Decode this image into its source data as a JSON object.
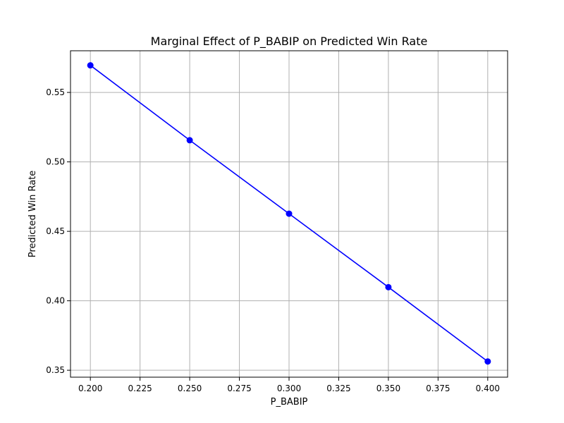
{
  "chart_data": {
    "type": "line",
    "title": "Marginal Effect of P_BABIP on Predicted Win Rate",
    "xlabel": "P_BABIP",
    "ylabel": "Predicted Win Rate",
    "xlim": [
      0.19,
      0.41
    ],
    "ylim": [
      0.345,
      0.58
    ],
    "x_ticks": [
      0.2,
      0.225,
      0.25,
      0.275,
      0.3,
      0.325,
      0.35,
      0.375,
      0.4
    ],
    "x_tick_labels": [
      "0.200",
      "0.225",
      "0.250",
      "0.275",
      "0.300",
      "0.325",
      "0.350",
      "0.375",
      "0.400"
    ],
    "y_ticks": [
      0.35,
      0.4,
      0.45,
      0.5,
      0.55
    ],
    "y_tick_labels": [
      "0.35",
      "0.40",
      "0.45",
      "0.50",
      "0.55"
    ],
    "grid": true,
    "series": [
      {
        "color": "#0000ff",
        "marker": "circle",
        "x": [
          0.2,
          0.25,
          0.3,
          0.35,
          0.4
        ],
        "y": [
          0.5695,
          0.5156,
          0.4627,
          0.4098,
          0.3563
        ]
      }
    ]
  }
}
